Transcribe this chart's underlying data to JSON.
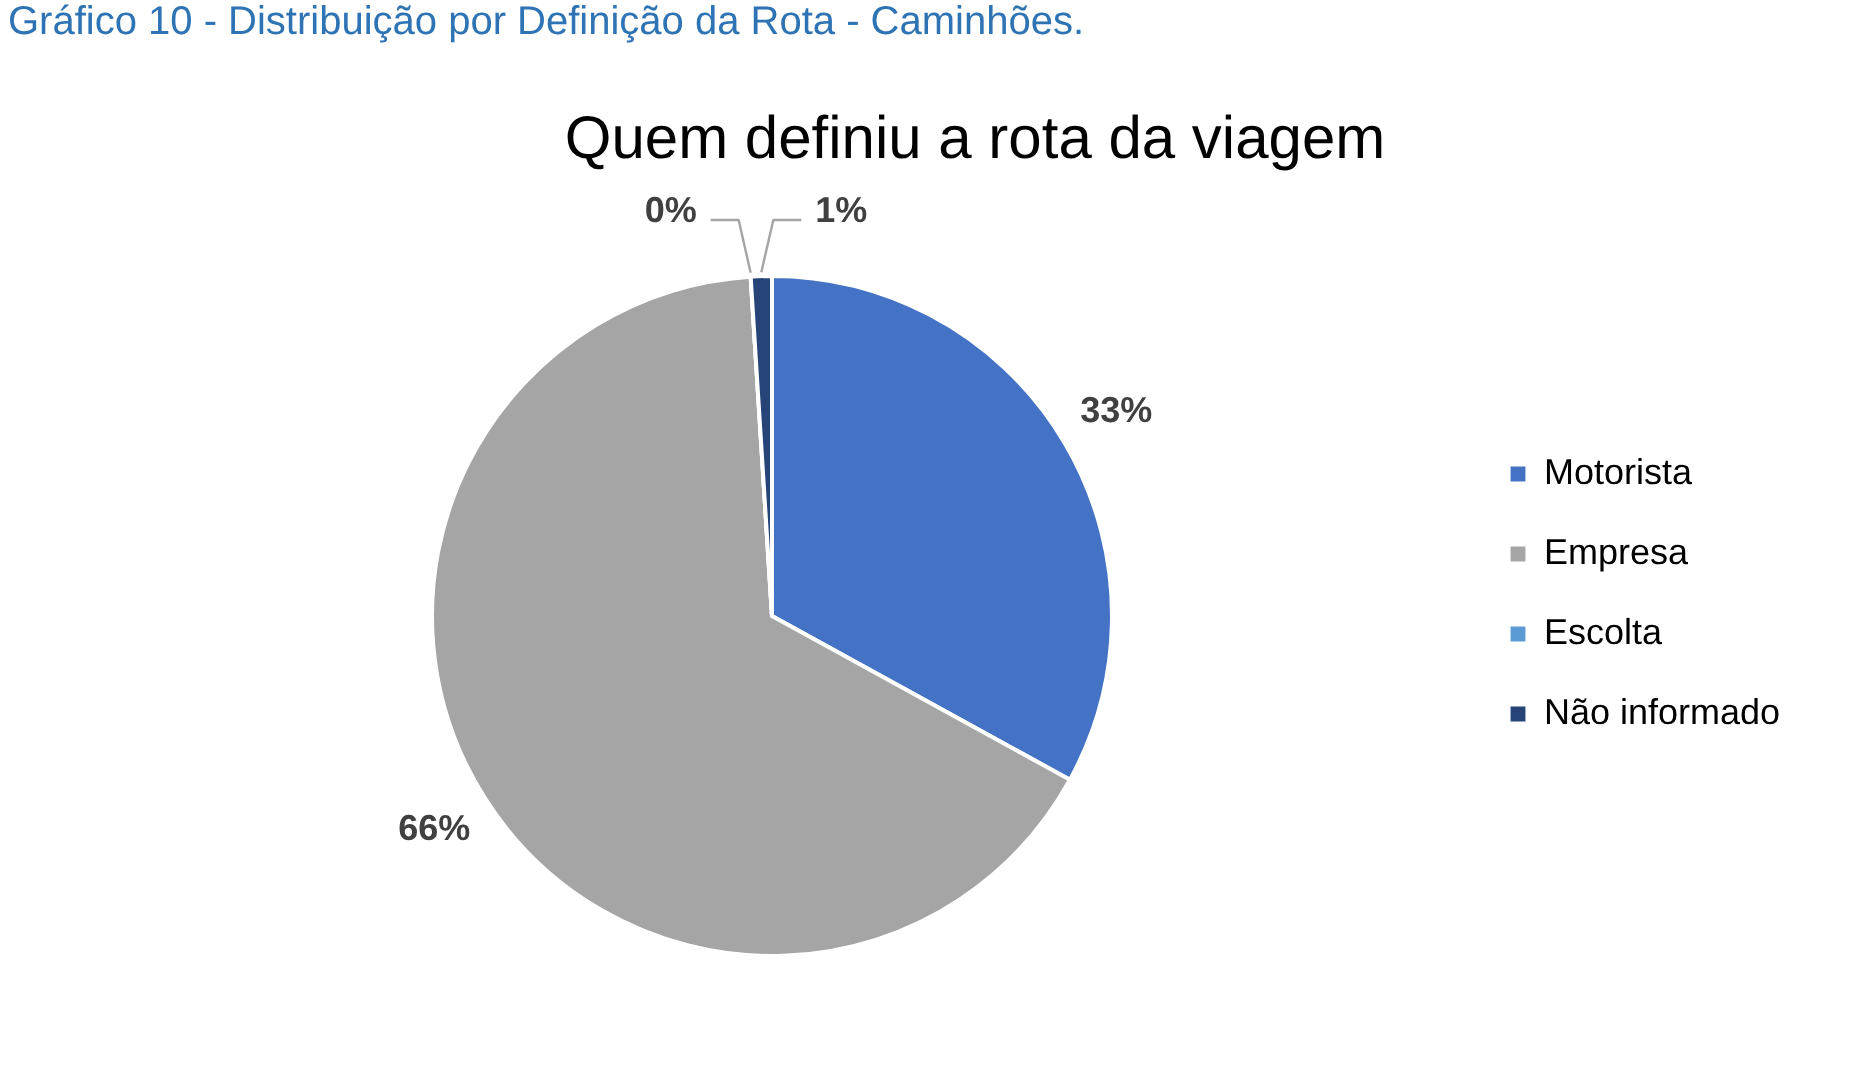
{
  "chart_data": {
    "type": "pie",
    "title": "Quem definiu a rota da viagem",
    "categories": [
      "Motorista",
      "Empresa",
      "Escolta",
      "Não informado"
    ],
    "values": [
      33,
      66,
      0,
      1
    ],
    "colors": [
      "#4472c4",
      "#a5a5a5",
      "#5b9bd5",
      "#264478"
    ],
    "value_labels": [
      "33%",
      "66%",
      "0%",
      "1%"
    ],
    "legend": "right",
    "annotations": [
      "Gráfico 10 - Distribuição por Definição da Rota - Caminhões."
    ]
  }
}
